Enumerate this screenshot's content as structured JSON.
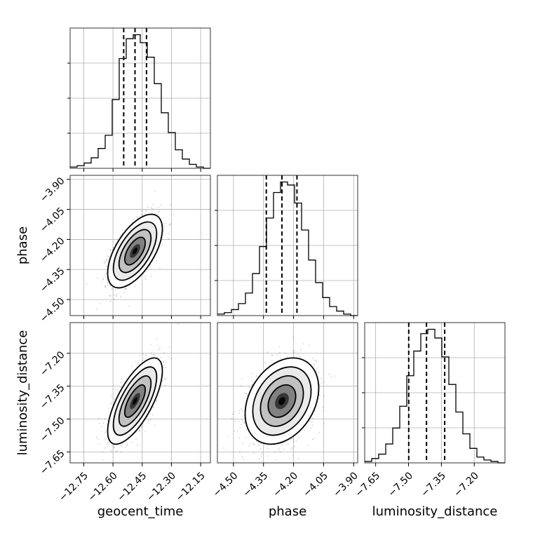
{
  "chart_data": {
    "type": "corner",
    "parameters": [
      "geocent_time",
      "phase",
      "luminosity_distance"
    ],
    "axis_labels": {
      "geocent_time": "geocent_time",
      "phase": "phase",
      "luminosity_distance": "luminosity_distance"
    },
    "ranges": {
      "geocent_time": [
        -12.82,
        -12.1
      ],
      "phase": [
        -4.58,
        -3.88
      ],
      "luminosity_distance": [
        -7.7,
        -7.06
      ]
    },
    "ticks": {
      "geocent_time": [
        -12.75,
        -12.6,
        -12.45,
        -12.3,
        -12.15
      ],
      "phase": [
        -4.5,
        -4.35,
        -4.2,
        -4.05,
        -3.9
      ],
      "luminosity_distance": [
        -7.65,
        -7.5,
        -7.35,
        -7.2
      ]
    },
    "tick_labels": {
      "geocent_time": [
        "−12.75",
        "−12.60",
        "−12.45",
        "−12.30",
        "−12.15"
      ],
      "phase": [
        "−4.50",
        "−4.35",
        "−4.20",
        "−4.05",
        "−3.90"
      ],
      "luminosity_distance": [
        "−7.65",
        "−7.50",
        "−7.35",
        "−7.20"
      ]
    },
    "quantiles": {
      "geocent_time": [
        -12.545,
        -12.487,
        -12.428
      ],
      "phase": [
        -4.336,
        -4.258,
        -4.183
      ],
      "luminosity_distance": [
        -7.499,
        -7.418,
        -7.335
      ]
    },
    "histograms": {
      "geocent_time": {
        "min": -12.82,
        "max": -12.1,
        "counts": [
          1,
          2,
          4,
          8,
          15,
          25,
          52,
          83,
          98,
          101,
          95,
          84,
          64,
          42,
          27,
          14,
          7,
          3,
          1,
          0
        ]
      },
      "phase": {
        "min": -4.58,
        "max": -3.88,
        "counts": [
          1,
          2,
          4,
          8,
          15,
          28,
          46,
          65,
          82,
          89,
          87,
          75,
          57,
          37,
          22,
          12,
          6,
          3,
          1,
          0
        ]
      },
      "luminosity_distance": {
        "min": -7.7,
        "max": -7.06,
        "counts": [
          1,
          3,
          6,
          13,
          24,
          39,
          60,
          77,
          89,
          92,
          86,
          73,
          54,
          35,
          20,
          10,
          4,
          2,
          1,
          0
        ]
      }
    },
    "correlations": {
      "phase_vs_geocent_time": 0.6,
      "luminosity_distance_vs_geocent_time": 0.7,
      "luminosity_distance_vs_phase": 0.3
    },
    "grid": true,
    "contour_levels": 4
  }
}
